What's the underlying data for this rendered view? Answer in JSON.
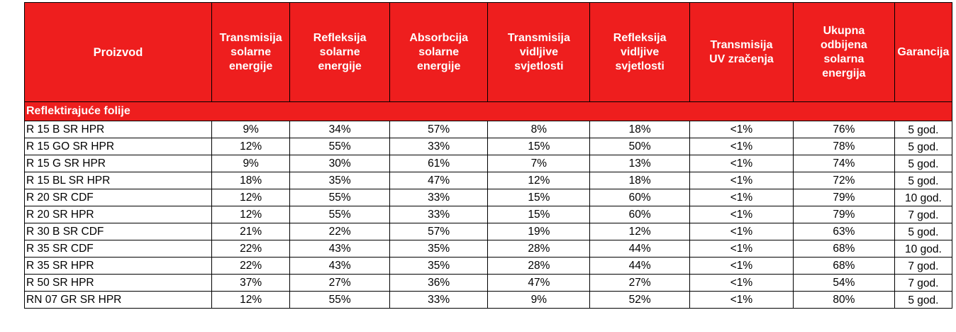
{
  "table": {
    "headers": [
      "Proizvod",
      "Transmisija solarne energije",
      "Refleksija solarne energije",
      "Absorbcija solarne energije",
      "Transmisija vidljive svjetlosti",
      "Refleksija vidljive svjetlosti",
      "Transmisija UV zračenja",
      "Ukupna odbijena solarna energija",
      "Garancija"
    ],
    "header_lines": [
      [
        "Proizvod"
      ],
      [
        "Transmisija",
        "solarne",
        "energije"
      ],
      [
        "Refleksija",
        "solarne",
        "energije"
      ],
      [
        "Absorbcija",
        "solarne",
        "energije"
      ],
      [
        "Transmisija",
        "vidljive",
        "svjetlosti"
      ],
      [
        "Refleksija",
        "vidljive",
        "svjetlosti"
      ],
      [
        "Transmisija",
        "UV zračenja"
      ],
      [
        "Ukupna",
        "odbijena",
        "solarna",
        "energija"
      ],
      [
        "Garancija"
      ]
    ],
    "section_title": "Reflektirajuće folije",
    "rows": [
      [
        "R 15 B SR HPR",
        "9%",
        "34%",
        "57%",
        "8%",
        "18%",
        "<1%",
        "76%",
        "5 god."
      ],
      [
        "R 15 GO SR HPR",
        "12%",
        "55%",
        "33%",
        "15%",
        "50%",
        "<1%",
        "78%",
        "5 god."
      ],
      [
        "R 15 G SR HPR",
        "9%",
        "30%",
        "61%",
        "7%",
        "13%",
        "<1%",
        "74%",
        "5 god."
      ],
      [
        "R 15 BL SR HPR",
        "18%",
        "35%",
        "47%",
        "12%",
        "18%",
        "<1%",
        "72%",
        "5 god."
      ],
      [
        "R 20 SR CDF",
        "12%",
        "55%",
        "33%",
        "15%",
        "60%",
        "<1%",
        "79%",
        "10 god."
      ],
      [
        "R 20 SR HPR",
        "12%",
        "55%",
        "33%",
        "15%",
        "60%",
        "<1%",
        "79%",
        "7 god."
      ],
      [
        "R 30 B SR CDF",
        "21%",
        "22%",
        "57%",
        "19%",
        "12%",
        "<1%",
        "63%",
        "5 god."
      ],
      [
        "R 35 SR CDF",
        "22%",
        "43%",
        "35%",
        "28%",
        "44%",
        "<1%",
        "68%",
        "10 god."
      ],
      [
        "R 35 SR HPR",
        "22%",
        "43%",
        "35%",
        "28%",
        "44%",
        "<1%",
        "68%",
        "7 god."
      ],
      [
        "R 50 SR HPR",
        "37%",
        "27%",
        "36%",
        "47%",
        "27%",
        "<1%",
        "54%",
        "7 god."
      ],
      [
        "RN 07 GR SR HPR",
        "12%",
        "55%",
        "33%",
        "9%",
        "52%",
        "<1%",
        "80%",
        "5 god."
      ]
    ]
  },
  "colors": {
    "header_bg": "#ee1e1e",
    "header_text": "#ffffff",
    "border": "#000000"
  }
}
